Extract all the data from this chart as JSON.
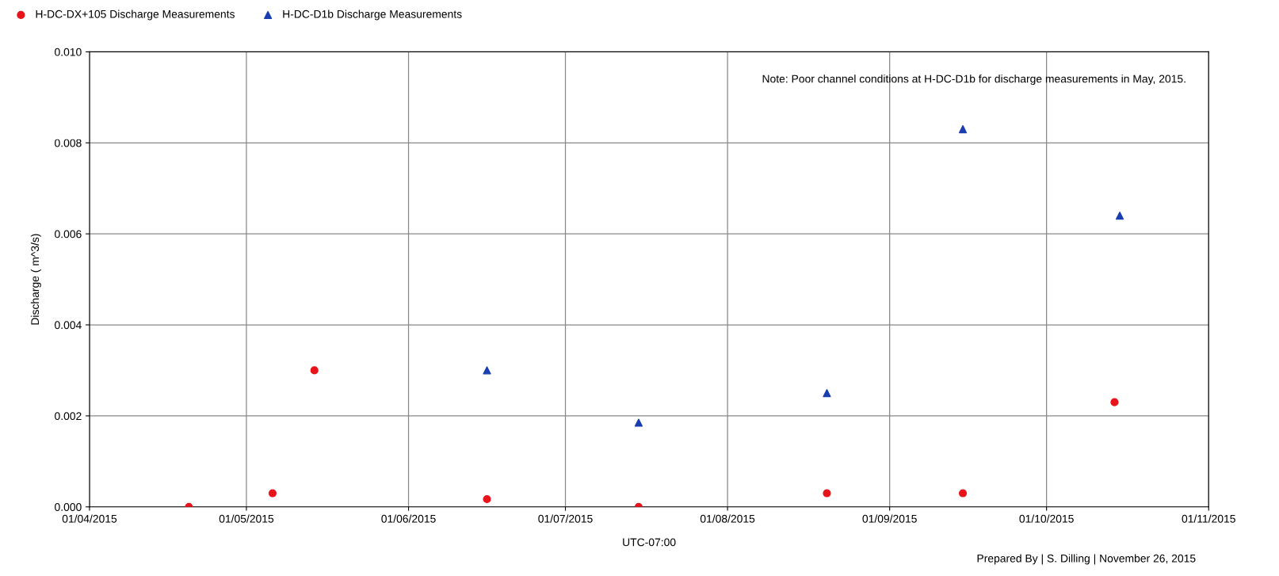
{
  "chart_data": {
    "type": "scatter",
    "xlabel": "UTC-07:00",
    "ylabel": "Discharge ( m^3/s)",
    "series": [
      {
        "name": "H-DC-DX+105 Discharge Measurements",
        "color": "#e8141c",
        "marker": "circle",
        "x": [
          "2015-04-20",
          "2015-05-06",
          "2015-05-14",
          "2015-06-16",
          "2015-07-15",
          "2015-08-20",
          "2015-09-15",
          "2015-10-14"
        ],
        "values": [
          0.0,
          0.0003,
          0.003,
          0.00017,
          0.0,
          0.0003,
          0.0003,
          0.0023
        ]
      },
      {
        "name": "H-DC-D1b Discharge Measurements",
        "color": "#1a3eb0",
        "marker": "triangle",
        "x": [
          "2015-06-16",
          "2015-07-15",
          "2015-08-20",
          "2015-09-15",
          "2015-10-15"
        ],
        "values": [
          0.003,
          0.00185,
          0.0025,
          0.0083,
          0.0064
        ]
      }
    ],
    "xlim": [
      "2015-04-01",
      "2015-11-01"
    ],
    "xticks": [
      {
        "value": "2015-04-01",
        "label": "01/04/2015"
      },
      {
        "value": "2015-05-01",
        "label": "01/05/2015"
      },
      {
        "value": "2015-06-01",
        "label": "01/06/2015"
      },
      {
        "value": "2015-07-01",
        "label": "01/07/2015"
      },
      {
        "value": "2015-08-01",
        "label": "01/08/2015"
      },
      {
        "value": "2015-09-01",
        "label": "01/09/2015"
      },
      {
        "value": "2015-10-01",
        "label": "01/10/2015"
      },
      {
        "value": "2015-11-01",
        "label": "01/11/2015"
      }
    ],
    "ylim": [
      0,
      0.01
    ],
    "yticks": [
      {
        "value": 0,
        "label": "0.000"
      },
      {
        "value": 0.002,
        "label": "0.002"
      },
      {
        "value": 0.004,
        "label": "0.004"
      },
      {
        "value": 0.006,
        "label": "0.006"
      },
      {
        "value": 0.008,
        "label": "0.008"
      },
      {
        "value": 0.01,
        "label": "0.010"
      }
    ],
    "grid": true,
    "legend": "top left",
    "annotations": [
      "Note: Poor channel conditions at H-DC-D1b for discharge measurements in May, 2015.",
      "Prepared By | S. Dilling | November 26, 2015"
    ]
  }
}
